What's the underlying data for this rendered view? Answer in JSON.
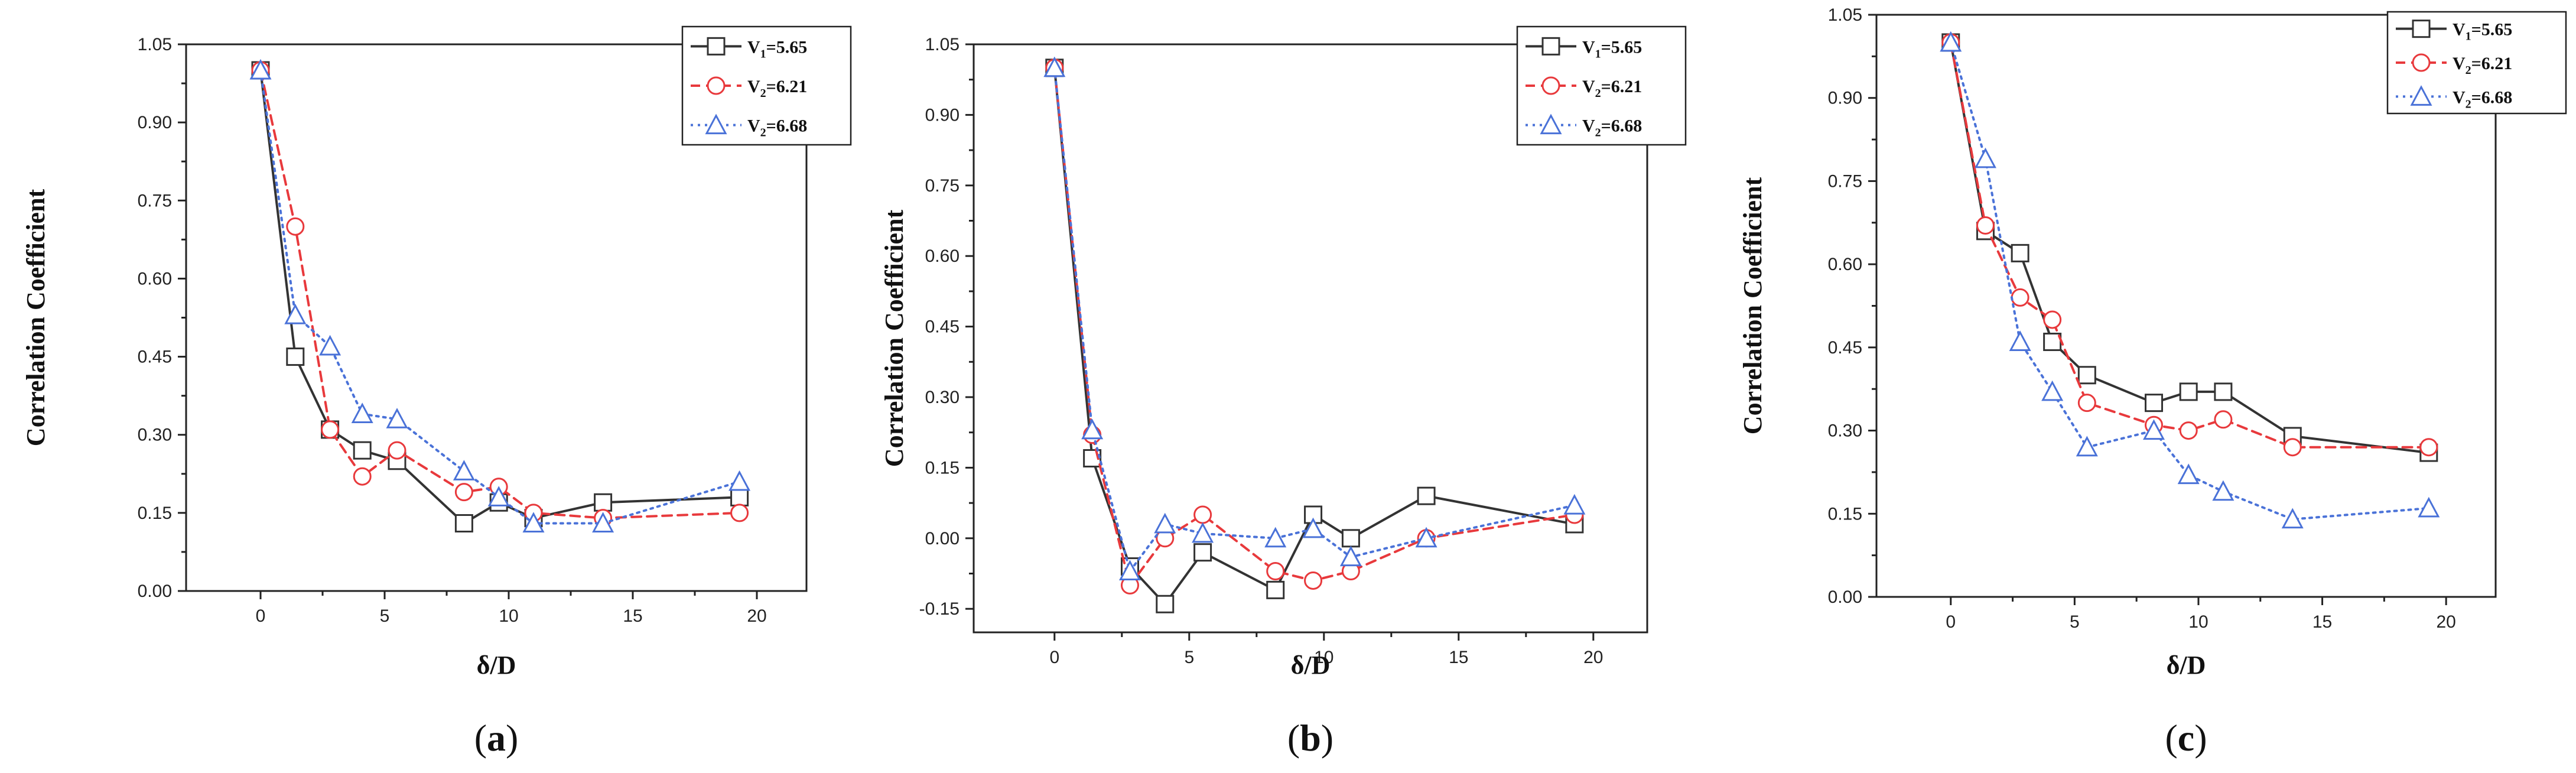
{
  "chart_data": [
    {
      "type": "line",
      "panel_label": "(a)",
      "xlabel": "δ/D",
      "ylabel": "Correlation Coefficient",
      "xlim": [
        -3,
        22
      ],
      "ylim": [
        0,
        1.05
      ],
      "xticks": [
        "0",
        "5",
        "10",
        "15",
        "20"
      ],
      "xtick_values": [
        0,
        5,
        10,
        15,
        20
      ],
      "yticks": [
        "0.00",
        "0.15",
        "0.30",
        "0.45",
        "0.60",
        "0.75",
        "0.90",
        "1.05"
      ],
      "ytick_values": [
        0,
        0.15,
        0.3,
        0.45,
        0.6,
        0.75,
        0.9,
        1.05
      ],
      "legend_position": "top-right",
      "series": [
        {
          "name_main": "V",
          "name_sub": "1",
          "name_value": "=5.65",
          "color": "#333333",
          "dash": "",
          "marker": "square",
          "x": [
            0,
            1.4,
            2.8,
            4.1,
            5.5,
            8.2,
            9.6,
            11.0,
            13.8,
            19.3
          ],
          "y": [
            1.0,
            0.45,
            0.31,
            0.27,
            0.25,
            0.13,
            0.17,
            0.14,
            0.17,
            0.18
          ]
        },
        {
          "name_main": "V",
          "name_sub": "2",
          "name_value": "=6.21",
          "color": "#e8393c",
          "dash": "16,10",
          "marker": "circle",
          "x": [
            0,
            1.4,
            2.8,
            4.1,
            5.5,
            8.2,
            9.6,
            11.0,
            13.8,
            19.3
          ],
          "y": [
            1.0,
            0.7,
            0.31,
            0.22,
            0.27,
            0.19,
            0.2,
            0.15,
            0.14,
            0.15
          ]
        },
        {
          "name_main": "V",
          "name_sub": "2",
          "name_value": "=6.68",
          "color": "#4a72d8",
          "dash": "4,8",
          "marker": "triangle",
          "x": [
            0,
            1.4,
            2.8,
            4.1,
            5.5,
            8.2,
            9.6,
            11.0,
            13.8,
            19.3
          ],
          "y": [
            1.0,
            0.53,
            0.47,
            0.34,
            0.33,
            0.23,
            0.18,
            0.13,
            0.13,
            0.21
          ]
        }
      ]
    },
    {
      "type": "line",
      "panel_label": "(b)",
      "xlabel": "δ/D",
      "ylabel": "Correlation Coefficient",
      "xlim": [
        -3,
        22
      ],
      "ylim": [
        -0.2,
        1.05
      ],
      "xticks": [
        "0",
        "5",
        "10",
        "15",
        "20"
      ],
      "xtick_values": [
        0,
        5,
        10,
        15,
        20
      ],
      "yticks": [
        "-0.15",
        "0.00",
        "0.15",
        "0.30",
        "0.45",
        "0.60",
        "0.75",
        "0.90",
        "1.05"
      ],
      "ytick_values": [
        -0.15,
        0,
        0.15,
        0.3,
        0.45,
        0.6,
        0.75,
        0.9,
        1.05
      ],
      "legend_position": "top-right",
      "series": [
        {
          "name_main": "V",
          "name_sub": "1",
          "name_value": "=5.65",
          "color": "#333333",
          "dash": "",
          "marker": "square",
          "x": [
            0,
            1.4,
            2.8,
            4.1,
            5.5,
            8.2,
            9.6,
            11.0,
            13.8,
            19.3
          ],
          "y": [
            1.0,
            0.17,
            -0.06,
            -0.14,
            -0.03,
            -0.11,
            0.05,
            0.0,
            0.09,
            0.03
          ]
        },
        {
          "name_main": "V",
          "name_sub": "2",
          "name_value": "=6.21",
          "color": "#e8393c",
          "dash": "16,10",
          "marker": "circle",
          "x": [
            0,
            1.4,
            2.8,
            4.1,
            5.5,
            8.2,
            9.6,
            11.0,
            13.8,
            19.3
          ],
          "y": [
            1.0,
            0.22,
            -0.1,
            0.0,
            0.05,
            -0.07,
            -0.09,
            -0.07,
            0.0,
            0.05
          ]
        },
        {
          "name_main": "V",
          "name_sub": "2",
          "name_value": "=6.68",
          "color": "#4a72d8",
          "dash": "4,8",
          "marker": "triangle",
          "x": [
            0,
            1.4,
            2.8,
            4.1,
            5.5,
            8.2,
            9.6,
            11.0,
            13.8,
            19.3
          ],
          "y": [
            1.0,
            0.23,
            -0.07,
            0.03,
            0.01,
            0.0,
            0.02,
            -0.04,
            0.0,
            0.07
          ]
        }
      ]
    },
    {
      "type": "line",
      "panel_label": "(c)",
      "xlabel": "δ/D",
      "ylabel": "Correlation Coefficient",
      "xlim": [
        -3,
        22
      ],
      "ylim": [
        0,
        1.05
      ],
      "xticks": [
        "0",
        "5",
        "10",
        "15",
        "20"
      ],
      "xtick_values": [
        0,
        5,
        10,
        15,
        20
      ],
      "yticks": [
        "0.00",
        "0.15",
        "0.30",
        "0.45",
        "0.60",
        "0.75",
        "0.90",
        "1.05"
      ],
      "ytick_values": [
        0,
        0.15,
        0.3,
        0.45,
        0.6,
        0.75,
        0.9,
        1.05
      ],
      "legend_position": "top-right",
      "series": [
        {
          "name_main": "V",
          "name_sub": "1",
          "name_value": "=5.65",
          "color": "#333333",
          "dash": "",
          "marker": "square",
          "x": [
            0,
            1.4,
            2.8,
            4.1,
            5.5,
            8.2,
            9.6,
            11.0,
            13.8,
            19.3
          ],
          "y": [
            1.0,
            0.66,
            0.62,
            0.46,
            0.4,
            0.35,
            0.37,
            0.37,
            0.29,
            0.26
          ]
        },
        {
          "name_main": "V",
          "name_sub": "2",
          "name_value": "=6.21",
          "color": "#e8393c",
          "dash": "16,10",
          "marker": "circle",
          "x": [
            0,
            1.4,
            2.8,
            4.1,
            5.5,
            8.2,
            9.6,
            11.0,
            13.8,
            19.3
          ],
          "y": [
            1.0,
            0.67,
            0.54,
            0.5,
            0.35,
            0.31,
            0.3,
            0.32,
            0.27,
            0.27
          ]
        },
        {
          "name_main": "V",
          "name_sub": "2",
          "name_value": "=6.68",
          "color": "#4a72d8",
          "dash": "4,8",
          "marker": "triangle",
          "x": [
            0,
            1.4,
            2.8,
            4.1,
            5.5,
            8.2,
            9.6,
            11.0,
            13.8,
            19.3
          ],
          "y": [
            1.0,
            0.79,
            0.46,
            0.37,
            0.27,
            0.3,
            0.22,
            0.19,
            0.14,
            0.16
          ]
        }
      ]
    }
  ]
}
